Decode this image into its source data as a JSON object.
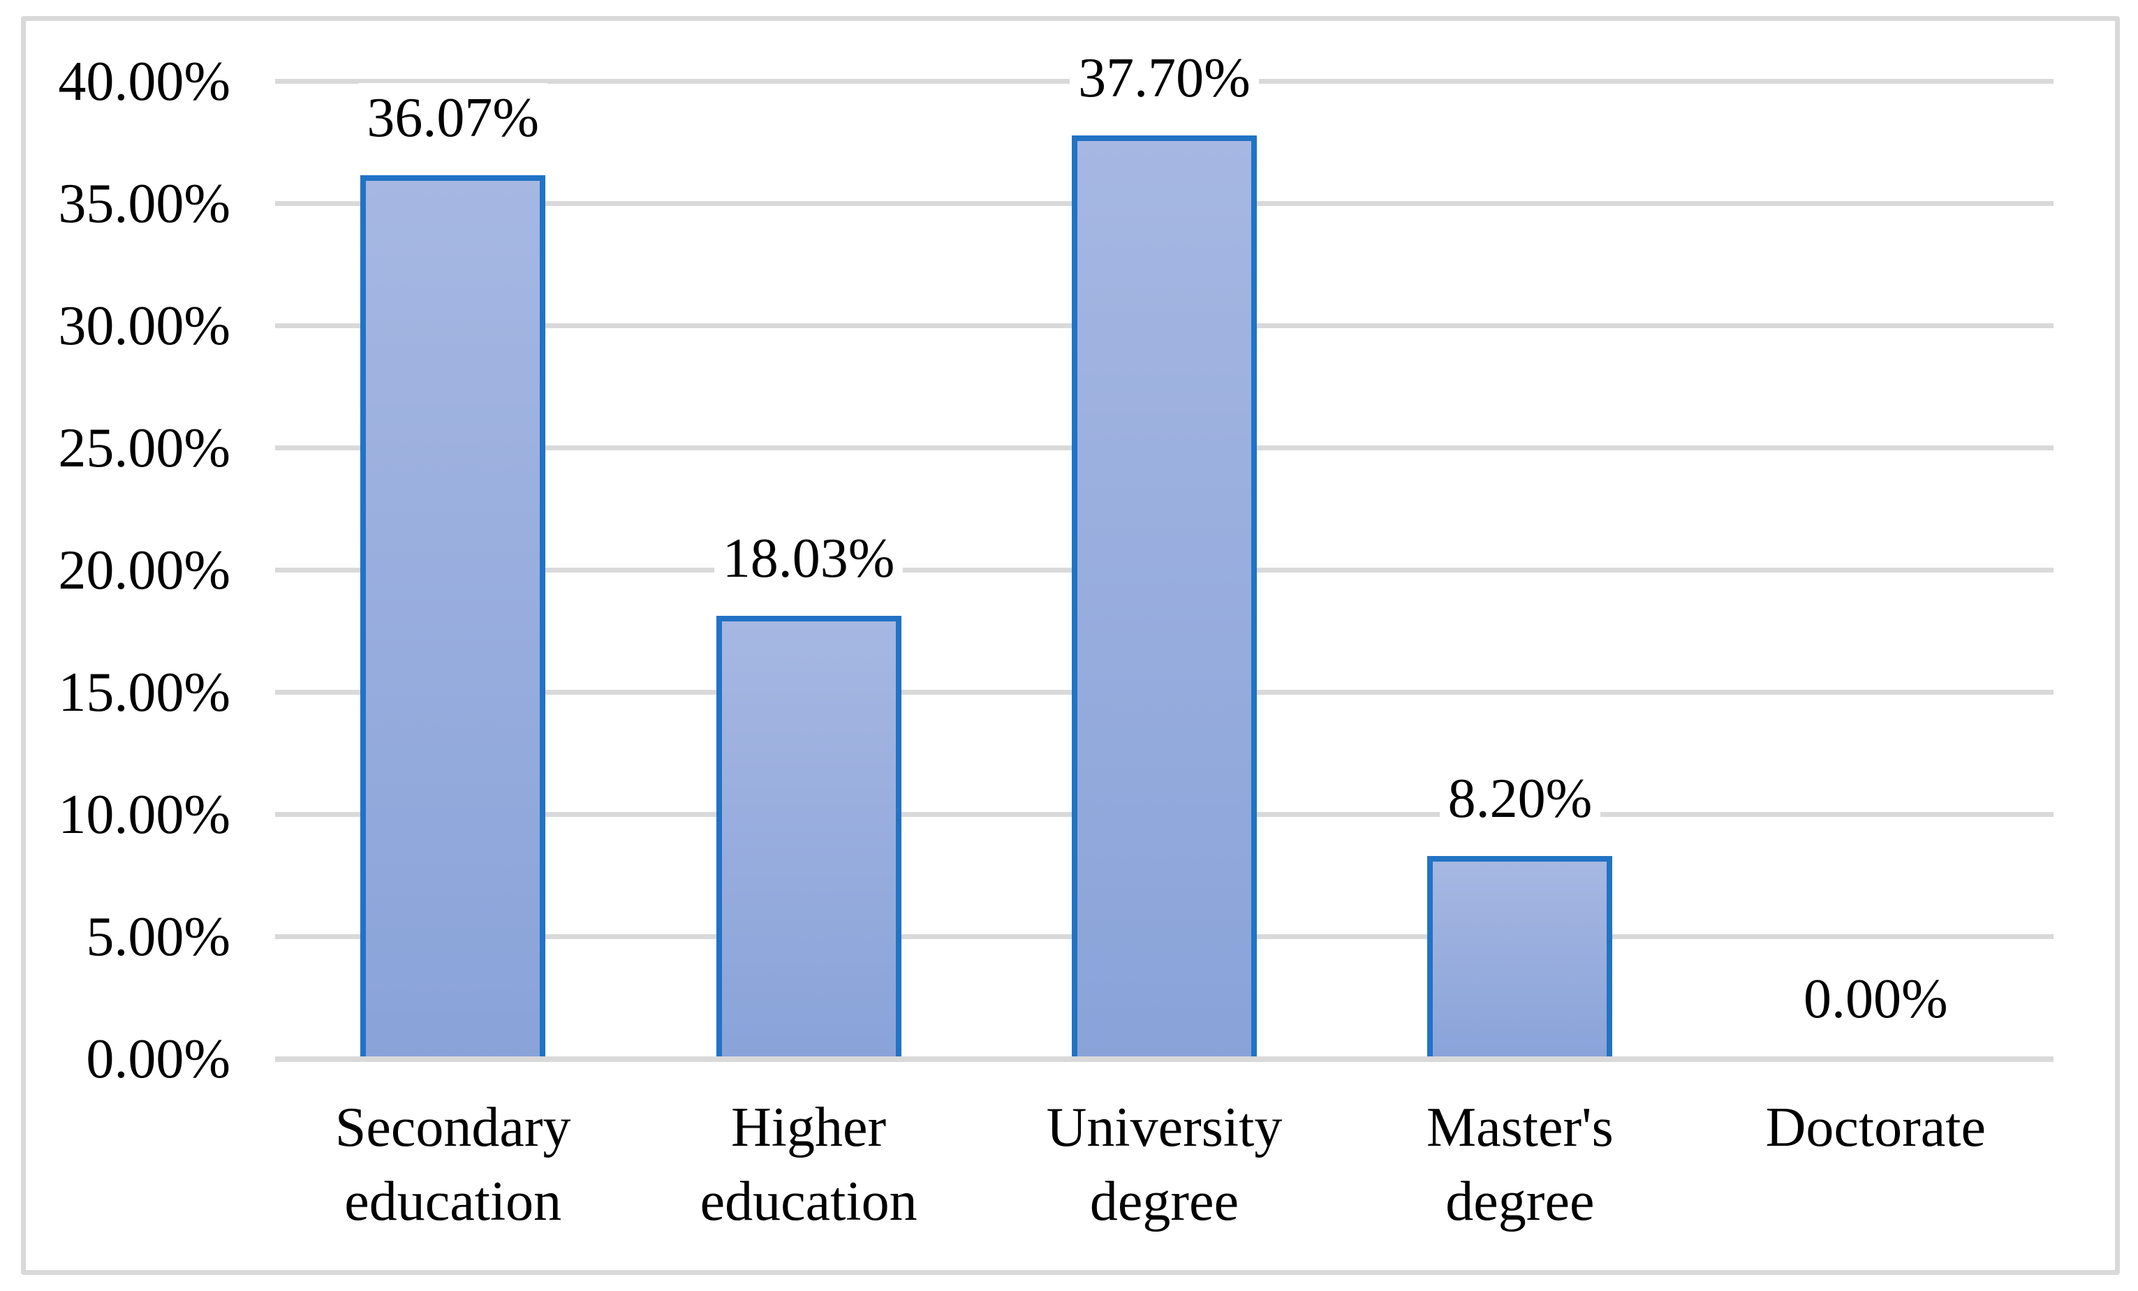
{
  "figure": {
    "background_color": "#ffffff",
    "frame_border_color": "#d9d9d9"
  },
  "chart_data": {
    "type": "bar",
    "title": "",
    "xlabel": "",
    "ylabel": "",
    "categories": [
      "Secondary education",
      "Higher education",
      "University degree",
      "Master's degree",
      "Doctorate"
    ],
    "category_label_lines": [
      [
        "Secondary",
        "education"
      ],
      [
        "Higher",
        "education"
      ],
      [
        "University",
        "degree"
      ],
      [
        "Master's",
        "degree"
      ],
      [
        "Doctorate"
      ]
    ],
    "values": [
      36.07,
      18.03,
      37.7,
      8.2,
      0.0
    ],
    "data_labels": [
      "36.07%",
      "18.03%",
      "37.70%",
      "8.20%",
      "0.00%"
    ],
    "y_axis": {
      "min": 0,
      "max": 40,
      "step": 5,
      "tick_labels": [
        "0.00%",
        "5.00%",
        "10.00%",
        "15.00%",
        "20.00%",
        "25.00%",
        "30.00%",
        "35.00%",
        "40.00%"
      ]
    },
    "grid": true,
    "legend": false,
    "colors": {
      "bar_fill_top": "#a6b7e2",
      "bar_fill_bottom": "#89a3d9",
      "bar_border": "#2173c4",
      "gridline": "#d9d9d9",
      "text": "#000000"
    }
  }
}
